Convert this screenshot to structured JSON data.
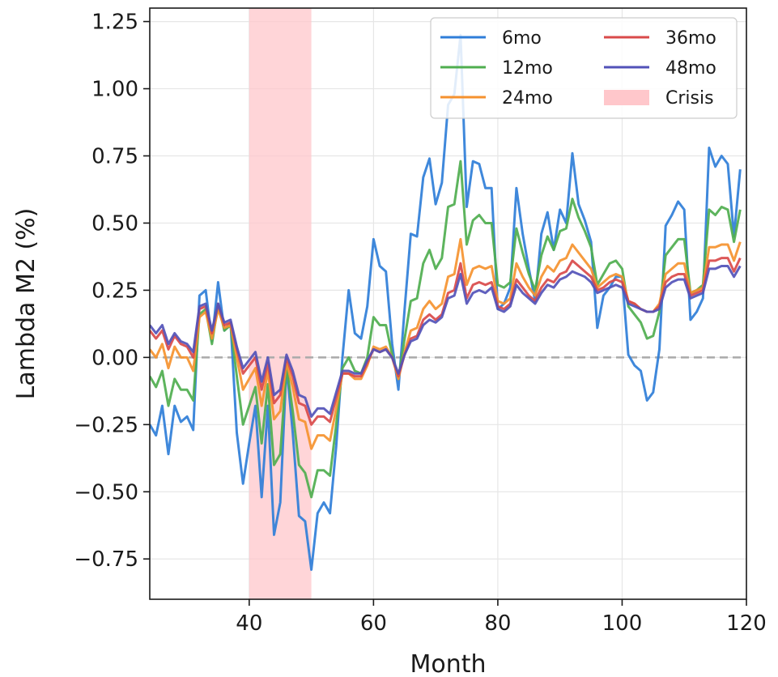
{
  "chart_data": {
    "type": "line",
    "title": "",
    "xlabel": "Month",
    "ylabel": "Lambda M2 (%)",
    "xlim": [
      24,
      120
    ],
    "ylim": [
      -0.9,
      1.3
    ],
    "xticks": [
      40,
      60,
      80,
      100,
      120
    ],
    "xtick_labels": [
      "40",
      "60",
      "80",
      "100",
      "120"
    ],
    "yticks": [
      -0.75,
      -0.5,
      -0.25,
      0.0,
      0.25,
      0.5,
      0.75,
      1.0,
      1.25
    ],
    "ytick_labels": [
      "−0.75",
      "−0.50",
      "−0.25",
      "0.00",
      "0.25",
      "0.50",
      "0.75",
      "1.00",
      "1.25"
    ],
    "grid": true,
    "legend_position": "top-right",
    "reference_line": {
      "y": 0,
      "style": "dashed",
      "color": "#aaaaaa"
    },
    "shaded_regions": [
      {
        "name": "Crisis",
        "x_start": 40,
        "x_end": 50,
        "color": "#ffc7cb"
      }
    ],
    "x": [
      24,
      25,
      26,
      27,
      28,
      29,
      30,
      31,
      32,
      33,
      34,
      35,
      36,
      37,
      38,
      39,
      40,
      41,
      42,
      43,
      44,
      45,
      46,
      47,
      48,
      49,
      50,
      51,
      52,
      53,
      54,
      55,
      56,
      57,
      58,
      59,
      60,
      61,
      62,
      63,
      64,
      65,
      66,
      67,
      68,
      69,
      70,
      71,
      72,
      73,
      74,
      75,
      76,
      77,
      78,
      79,
      80,
      81,
      82,
      83,
      84,
      85,
      86,
      87,
      88,
      89,
      90,
      91,
      92,
      93,
      94,
      95,
      96,
      97,
      98,
      99,
      100,
      101,
      102,
      103,
      104,
      105,
      106,
      107,
      108,
      109,
      110,
      111,
      112,
      113,
      114,
      115,
      116,
      117,
      118,
      119
    ],
    "series": [
      {
        "name": "6mo",
        "color": "#2f7ed8",
        "values": [
          -0.25,
          -0.29,
          -0.18,
          -0.36,
          -0.18,
          -0.24,
          -0.22,
          -0.27,
          0.23,
          0.25,
          0.06,
          0.28,
          0.1,
          0.13,
          -0.28,
          -0.47,
          -0.32,
          -0.18,
          -0.52,
          -0.18,
          -0.66,
          -0.54,
          -0.03,
          -0.28,
          -0.59,
          -0.61,
          -0.79,
          -0.58,
          -0.54,
          -0.58,
          -0.33,
          0.0,
          0.25,
          0.09,
          0.07,
          0.19,
          0.44,
          0.34,
          0.32,
          0.05,
          -0.12,
          0.18,
          0.46,
          0.45,
          0.67,
          0.74,
          0.57,
          0.65,
          0.94,
          0.98,
          1.2,
          0.56,
          0.73,
          0.72,
          0.63,
          0.63,
          0.18,
          0.2,
          0.26,
          0.63,
          0.46,
          0.33,
          0.21,
          0.46,
          0.54,
          0.4,
          0.55,
          0.5,
          0.76,
          0.57,
          0.51,
          0.43,
          0.11,
          0.23,
          0.26,
          0.3,
          0.3,
          0.01,
          -0.03,
          -0.05,
          -0.16,
          -0.13,
          0.03,
          0.49,
          0.53,
          0.58,
          0.55,
          0.14,
          0.17,
          0.22,
          0.78,
          0.71,
          0.75,
          0.72,
          0.45,
          0.7
        ]
      },
      {
        "name": "12mo",
        "color": "#4fae4f",
        "values": [
          -0.07,
          -0.11,
          -0.05,
          -0.18,
          -0.08,
          -0.12,
          -0.12,
          -0.16,
          0.16,
          0.18,
          0.05,
          0.2,
          0.1,
          0.12,
          -0.07,
          -0.25,
          -0.18,
          -0.11,
          -0.32,
          -0.1,
          -0.4,
          -0.36,
          -0.03,
          -0.2,
          -0.4,
          -0.43,
          -0.52,
          -0.42,
          -0.42,
          -0.44,
          -0.25,
          -0.04,
          0.0,
          -0.05,
          -0.06,
          0.0,
          0.15,
          0.12,
          0.12,
          0.01,
          -0.08,
          0.07,
          0.21,
          0.22,
          0.35,
          0.4,
          0.33,
          0.37,
          0.56,
          0.57,
          0.73,
          0.42,
          0.51,
          0.53,
          0.5,
          0.5,
          0.27,
          0.26,
          0.28,
          0.48,
          0.39,
          0.31,
          0.25,
          0.38,
          0.45,
          0.4,
          0.47,
          0.48,
          0.59,
          0.52,
          0.47,
          0.41,
          0.27,
          0.31,
          0.35,
          0.36,
          0.33,
          0.19,
          0.16,
          0.13,
          0.07,
          0.08,
          0.17,
          0.38,
          0.41,
          0.44,
          0.44,
          0.24,
          0.25,
          0.27,
          0.55,
          0.53,
          0.56,
          0.55,
          0.43,
          0.55
        ]
      },
      {
        "name": "24mo",
        "color": "#f5922f",
        "values": [
          0.03,
          0.0,
          0.05,
          -0.04,
          0.04,
          0.0,
          0.0,
          -0.05,
          0.15,
          0.17,
          0.07,
          0.18,
          0.11,
          0.12,
          0.0,
          -0.12,
          -0.08,
          -0.04,
          -0.18,
          -0.05,
          -0.23,
          -0.2,
          -0.02,
          -0.11,
          -0.23,
          -0.24,
          -0.34,
          -0.29,
          -0.29,
          -0.31,
          -0.19,
          -0.06,
          -0.06,
          -0.08,
          -0.08,
          -0.03,
          0.04,
          0.03,
          0.04,
          0.0,
          -0.08,
          0.02,
          0.1,
          0.11,
          0.18,
          0.21,
          0.18,
          0.2,
          0.3,
          0.31,
          0.44,
          0.27,
          0.33,
          0.34,
          0.33,
          0.34,
          0.21,
          0.2,
          0.22,
          0.35,
          0.3,
          0.26,
          0.23,
          0.3,
          0.34,
          0.32,
          0.36,
          0.37,
          0.42,
          0.39,
          0.36,
          0.33,
          0.26,
          0.28,
          0.3,
          0.31,
          0.3,
          0.21,
          0.2,
          0.18,
          0.17,
          0.17,
          0.2,
          0.31,
          0.33,
          0.35,
          0.35,
          0.24,
          0.25,
          0.26,
          0.41,
          0.41,
          0.42,
          0.42,
          0.36,
          0.43
        ]
      },
      {
        "name": "36mo",
        "color": "#d94a4a",
        "values": [
          0.1,
          0.07,
          0.1,
          0.03,
          0.08,
          0.05,
          0.04,
          0.0,
          0.18,
          0.19,
          0.09,
          0.2,
          0.12,
          0.13,
          0.03,
          -0.06,
          -0.03,
          0.0,
          -0.12,
          -0.02,
          -0.17,
          -0.14,
          0.0,
          -0.07,
          -0.17,
          -0.18,
          -0.25,
          -0.22,
          -0.22,
          -0.24,
          -0.15,
          -0.06,
          -0.06,
          -0.07,
          -0.07,
          -0.02,
          0.03,
          0.02,
          0.03,
          0.0,
          -0.07,
          0.01,
          0.07,
          0.08,
          0.14,
          0.16,
          0.14,
          0.16,
          0.24,
          0.25,
          0.35,
          0.22,
          0.27,
          0.28,
          0.27,
          0.28,
          0.19,
          0.18,
          0.2,
          0.29,
          0.26,
          0.23,
          0.21,
          0.26,
          0.29,
          0.28,
          0.31,
          0.32,
          0.36,
          0.34,
          0.32,
          0.3,
          0.25,
          0.26,
          0.28,
          0.29,
          0.28,
          0.21,
          0.2,
          0.18,
          0.17,
          0.17,
          0.19,
          0.28,
          0.3,
          0.31,
          0.31,
          0.23,
          0.24,
          0.25,
          0.36,
          0.36,
          0.37,
          0.37,
          0.32,
          0.37
        ]
      },
      {
        "name": "48mo",
        "color": "#5252b8",
        "values": [
          0.12,
          0.09,
          0.12,
          0.05,
          0.09,
          0.06,
          0.05,
          0.02,
          0.19,
          0.2,
          0.1,
          0.2,
          0.13,
          0.14,
          0.04,
          -0.04,
          -0.01,
          0.02,
          -0.09,
          0.0,
          -0.14,
          -0.12,
          0.01,
          -0.05,
          -0.14,
          -0.15,
          -0.22,
          -0.19,
          -0.19,
          -0.21,
          -0.13,
          -0.05,
          -0.05,
          -0.06,
          -0.06,
          -0.01,
          0.03,
          0.02,
          0.03,
          0.0,
          -0.06,
          0.01,
          0.06,
          0.07,
          0.12,
          0.14,
          0.13,
          0.15,
          0.22,
          0.23,
          0.31,
          0.2,
          0.24,
          0.25,
          0.24,
          0.26,
          0.18,
          0.17,
          0.19,
          0.27,
          0.24,
          0.22,
          0.2,
          0.24,
          0.27,
          0.26,
          0.29,
          0.3,
          0.32,
          0.31,
          0.3,
          0.28,
          0.24,
          0.25,
          0.26,
          0.27,
          0.26,
          0.2,
          0.19,
          0.18,
          0.17,
          0.17,
          0.18,
          0.26,
          0.28,
          0.29,
          0.29,
          0.22,
          0.23,
          0.24,
          0.33,
          0.33,
          0.34,
          0.34,
          0.3,
          0.34
        ]
      }
    ]
  },
  "legend": {
    "entries": [
      {
        "label": "6mo",
        "kind": "line",
        "color": "#2f7ed8"
      },
      {
        "label": "12mo",
        "kind": "line",
        "color": "#4fae4f"
      },
      {
        "label": "24mo",
        "kind": "line",
        "color": "#f5922f"
      },
      {
        "label": "36mo",
        "kind": "line",
        "color": "#d94a4a"
      },
      {
        "label": "48mo",
        "kind": "line",
        "color": "#5252b8"
      },
      {
        "label": "Crisis",
        "kind": "patch",
        "color": "#ffc7cb"
      }
    ]
  }
}
